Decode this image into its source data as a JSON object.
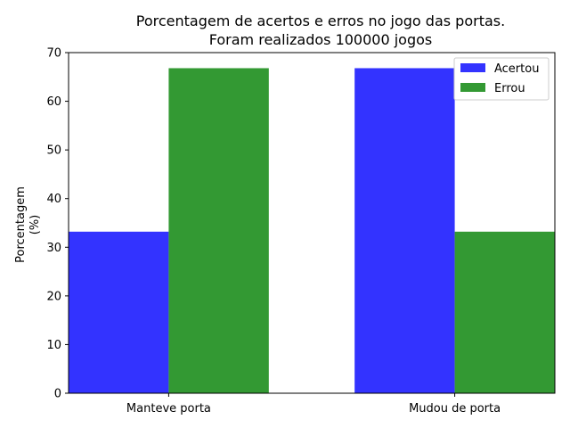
{
  "chart_data": {
    "type": "bar",
    "title_lines": [
      "Porcentagem de acertos e erros no jogo das portas.",
      "Foram realizados 100000 jogos"
    ],
    "xlabel": "",
    "ylabel_lines": [
      "Porcentagem",
      "(%)"
    ],
    "categories": [
      "Manteve porta",
      "Mudou de porta"
    ],
    "series": [
      {
        "name": "Acertou",
        "values": [
          33.2,
          66.8
        ],
        "color": "#3333ff"
      },
      {
        "name": "Errou",
        "values": [
          66.8,
          33.2
        ],
        "color": "#339933"
      }
    ],
    "ylim": [
      0,
      70
    ],
    "yticks": [
      0,
      10,
      20,
      30,
      40,
      50,
      60,
      70
    ],
    "grid": false,
    "legend_position": "top-right"
  }
}
